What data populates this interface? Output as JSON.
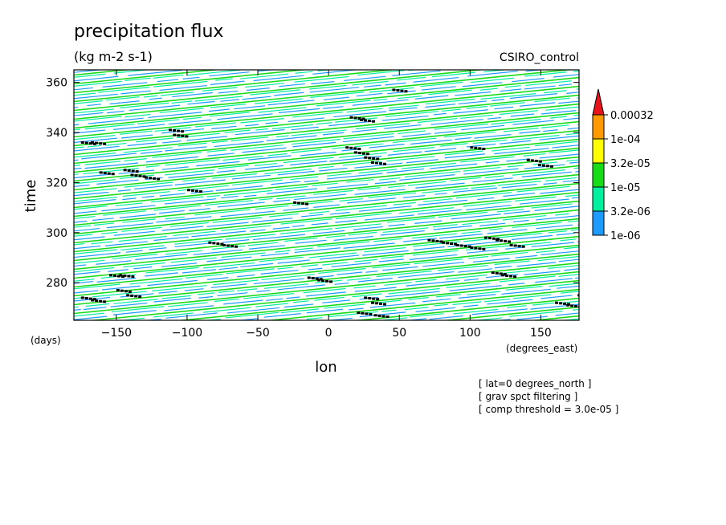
{
  "chart_data": {
    "type": "heatmap",
    "title": "precipitation flux",
    "units": "(kg m-2 s-1)",
    "dataset": "CSIRO_control",
    "xlabel": "lon",
    "ylabel": "time",
    "x_units": "(degrees_east)",
    "y_units": "(days)",
    "xlim": [
      -180,
      177
    ],
    "ylim": [
      265,
      365
    ],
    "x_ticks": [
      -150,
      -100,
      -50,
      0,
      50,
      100,
      150
    ],
    "y_ticks": [
      280,
      300,
      320,
      340,
      360
    ],
    "x_tick_labels": [
      "−150",
      "−100",
      "−50",
      "0",
      "50",
      "100",
      "150"
    ],
    "y_tick_labels": [
      "280",
      "300",
      "320",
      "340",
      "360"
    ],
    "colorbar": {
      "levels": [
        "0.00032",
        "1e-04",
        "3.2e-05",
        "1e-05",
        "3.2e-06",
        "1e-06"
      ],
      "colors": [
        "#e8141c",
        "#ff9900",
        "#ffff00",
        "#18dc18",
        "#00f0a0",
        "#1e9bff"
      ]
    },
    "annotations": [
      "[ lat=0 degrees_north ]",
      "[ grav spct filtering ]",
      "[ comp threshold = 3.0e-05 ]"
    ],
    "grid": false,
    "legend_placement": "right",
    "pattern": "westward-propagating bands of precipitation flux, mostly 1e-06 to 3.2e-05, with scattered black patches above the compositing threshold"
  }
}
